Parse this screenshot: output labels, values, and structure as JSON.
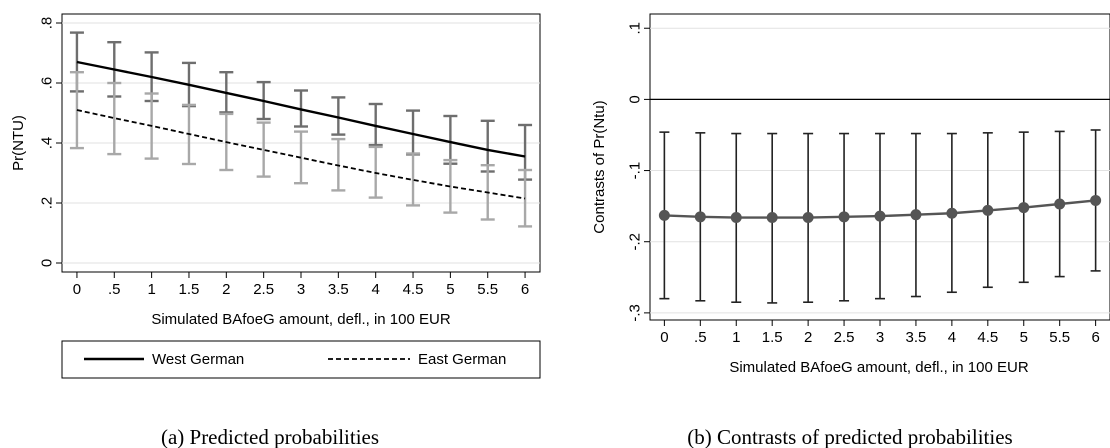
{
  "chart_data": [
    {
      "type": "line",
      "caption": "(a) Predicted probabilities",
      "xlabel": "Simulated BAfoeG amount, defl., in 100 EUR",
      "ylabel": "Pr(NTU)",
      "x": [
        0,
        0.5,
        1,
        1.5,
        2,
        2.5,
        3,
        3.5,
        4,
        4.5,
        5,
        5.5,
        6
      ],
      "x_tick_labels": [
        "0",
        ".5",
        "1",
        "1.5",
        "2",
        "2.5",
        "3",
        "3.5",
        "4",
        "4.5",
        "5",
        "5.5",
        "6"
      ],
      "y_ticks": [
        0,
        0.2,
        0.4,
        0.6,
        0.8
      ],
      "y_tick_labels": [
        "0",
        ".2",
        ".4",
        ".6",
        ".8"
      ],
      "xlim": [
        -0.2,
        6.2
      ],
      "ylim": [
        -0.03,
        0.83
      ],
      "grid": true,
      "legend": "bottom",
      "series": [
        {
          "name": "West German",
          "line_style": "solid",
          "color": "#000000",
          "ci_color": "#6e6e6e",
          "values": [
            0.67,
            0.645,
            0.62,
            0.594,
            0.567,
            0.54,
            0.512,
            0.485,
            0.457,
            0.43,
            0.403,
            0.377,
            0.355
          ],
          "ci_low": [
            0.572,
            0.555,
            0.54,
            0.523,
            0.502,
            0.48,
            0.455,
            0.428,
            0.393,
            0.362,
            0.331,
            0.305,
            0.278
          ],
          "ci_high": [
            0.768,
            0.736,
            0.702,
            0.667,
            0.636,
            0.603,
            0.575,
            0.552,
            0.53,
            0.508,
            0.49,
            0.474,
            0.46
          ]
        },
        {
          "name": "East German",
          "line_style": "dashed",
          "color": "#000000",
          "ci_color": "#a8a8a8",
          "values": [
            0.51,
            0.483,
            0.457,
            0.43,
            0.403,
            0.377,
            0.351,
            0.325,
            0.3,
            0.277,
            0.255,
            0.235,
            0.215
          ],
          "ci_low": [
            0.383,
            0.363,
            0.348,
            0.33,
            0.31,
            0.288,
            0.266,
            0.242,
            0.218,
            0.192,
            0.168,
            0.145,
            0.122
          ],
          "ci_high": [
            0.636,
            0.6,
            0.565,
            0.527,
            0.497,
            0.468,
            0.438,
            0.413,
            0.387,
            0.365,
            0.343,
            0.326,
            0.31
          ]
        }
      ]
    },
    {
      "type": "line",
      "caption": "(b) Contrasts of predicted probabilities",
      "xlabel": "Simulated BAfoeG amount, defl., in 100 EUR",
      "ylabel": "Contrasts of Pr(Ntu)",
      "x": [
        0,
        0.5,
        1,
        1.5,
        2,
        2.5,
        3,
        3.5,
        4,
        4.5,
        5,
        5.5,
        6
      ],
      "x_tick_labels": [
        "0",
        ".5",
        "1",
        "1.5",
        "2",
        "2.5",
        "3",
        "3.5",
        "4",
        "4.5",
        "5",
        "5.5",
        "6"
      ],
      "y_ticks": [
        -0.3,
        -0.2,
        -0.1,
        0,
        0.1
      ],
      "y_tick_labels": [
        "-.3",
        "-.2",
        "-.1",
        "0",
        ".1"
      ],
      "xlim": [
        -0.2,
        6.2
      ],
      "ylim": [
        -0.31,
        0.12
      ],
      "grid": true,
      "reference_line_y": 0,
      "series": [
        {
          "marker": "circle",
          "color": "#555555",
          "values": [
            -0.163,
            -0.165,
            -0.166,
            -0.166,
            -0.166,
            -0.165,
            -0.164,
            -0.162,
            -0.16,
            -0.156,
            -0.152,
            -0.147,
            -0.142
          ],
          "ci_low": [
            -0.28,
            -0.283,
            -0.285,
            -0.286,
            -0.285,
            -0.283,
            -0.28,
            -0.277,
            -0.271,
            -0.264,
            -0.257,
            -0.249,
            -0.241
          ],
          "ci_high": [
            -0.046,
            -0.047,
            -0.048,
            -0.048,
            -0.048,
            -0.048,
            -0.048,
            -0.048,
            -0.048,
            -0.047,
            -0.046,
            -0.045,
            -0.043
          ]
        }
      ]
    }
  ]
}
